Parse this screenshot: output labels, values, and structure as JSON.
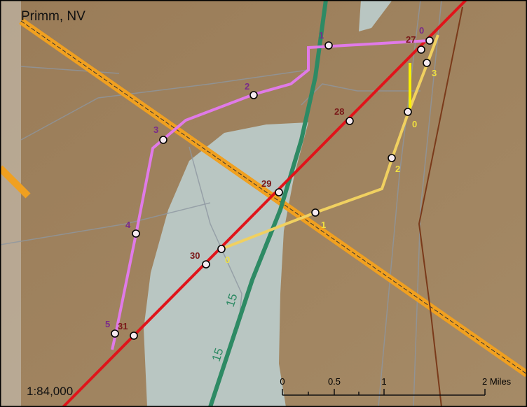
{
  "title": "Primm, NV",
  "scale": "1:84,000",
  "scale_bar": {
    "labels": [
      "0",
      "0.5",
      "1",
      "2 Miles"
    ]
  },
  "highway_labels": [
    "15",
    "15"
  ],
  "mileposts": {
    "purple": [
      "0",
      "1",
      "2",
      "3",
      "4",
      "5"
    ],
    "red": [
      "27",
      "28",
      "29",
      "30",
      "31"
    ],
    "yellow": [
      "0",
      "1",
      "2",
      "3",
      "0"
    ]
  }
}
